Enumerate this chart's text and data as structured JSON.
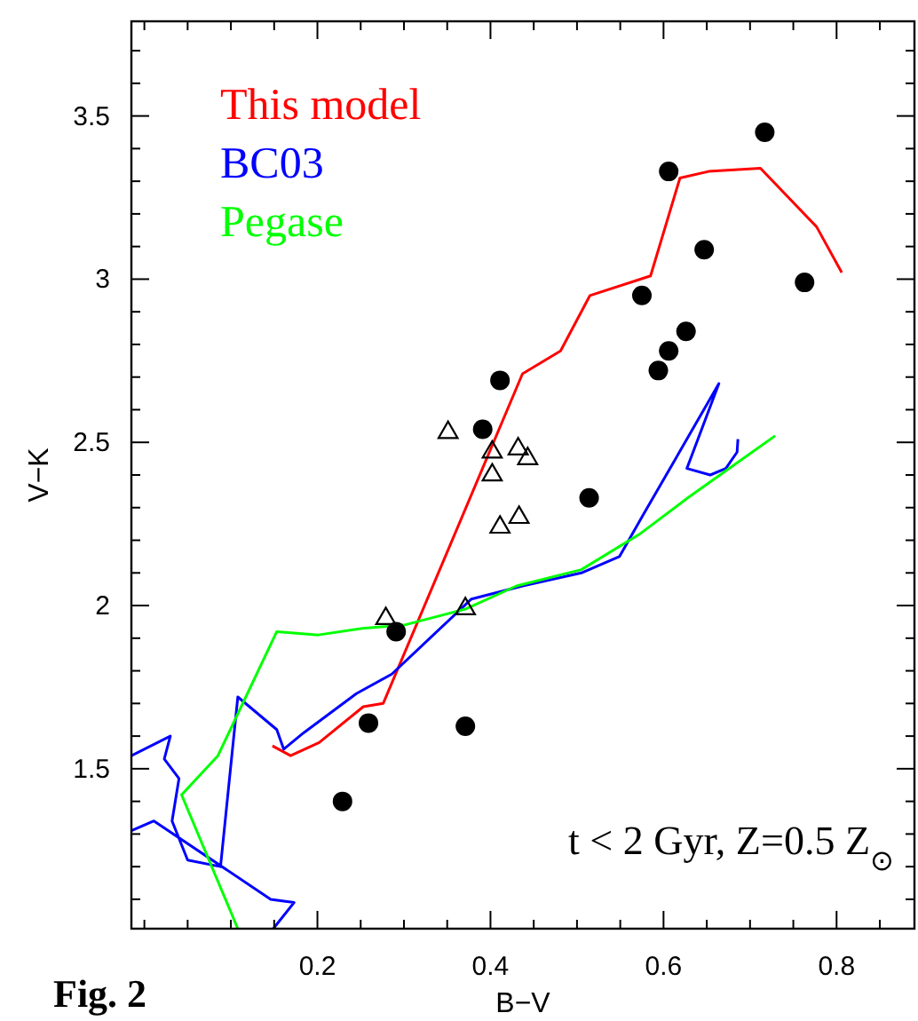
{
  "chart_data": {
    "type": "line",
    "xlabel": "B−V",
    "ylabel": "V−K",
    "legend": "top left",
    "xlim": [
      -0.015,
      0.89
    ],
    "ylim": [
      1.01,
      3.79
    ],
    "xticks": [
      {
        "value": 0,
        "label": null
      },
      {
        "value": 0.05,
        "label": null
      },
      {
        "value": 0.1,
        "label": null
      },
      {
        "value": 0.15,
        "label": null
      },
      0.2,
      {
        "value": 0.25,
        "label": null
      },
      {
        "value": 0.3,
        "label": null
      },
      {
        "value": 0.35,
        "label": null
      },
      0.4,
      {
        "value": 0.45,
        "label": null
      },
      {
        "value": 0.5,
        "label": null
      },
      {
        "value": 0.55,
        "label": null
      },
      0.6,
      {
        "value": 0.65,
        "label": null
      },
      {
        "value": 0.7,
        "label": null
      },
      {
        "value": 0.75,
        "label": null
      },
      0.8,
      {
        "value": 0.85,
        "label": null
      }
    ],
    "yticks": [
      {
        "value": 1.1,
        "label": null
      },
      {
        "value": 1.2,
        "label": null
      },
      {
        "value": 1.3,
        "label": null
      },
      {
        "value": 1.4,
        "label": null
      },
      1.5,
      {
        "value": 1.6,
        "label": null
      },
      {
        "value": 1.7,
        "label": null
      },
      {
        "value": 1.8,
        "label": null
      },
      {
        "value": 1.9,
        "label": null
      },
      2,
      {
        "value": 2.1,
        "label": null
      },
      {
        "value": 2.2,
        "label": null
      },
      {
        "value": 2.3,
        "label": null
      },
      {
        "value": 2.4,
        "label": null
      },
      2.5,
      {
        "value": 2.6,
        "label": null
      },
      {
        "value": 2.7,
        "label": null
      },
      {
        "value": 2.8,
        "label": null
      },
      {
        "value": 2.9,
        "label": null
      },
      3,
      {
        "value": 3.1,
        "label": null
      },
      {
        "value": 3.2,
        "label": null
      },
      {
        "value": 3.3,
        "label": null
      },
      {
        "value": 3.4,
        "label": null
      },
      3.5,
      {
        "value": 3.6,
        "label": null
      },
      {
        "value": 3.7,
        "label": null
      }
    ],
    "series": [
      {
        "name": "This model",
        "color": "#ff0000",
        "x": [
          0.148,
          0.169,
          0.202,
          0.253,
          0.276,
          0.437,
          0.481,
          0.515,
          0.585,
          0.619,
          0.652,
          0.712,
          0.777,
          0.806
        ],
        "values": [
          1.57,
          1.54,
          1.58,
          1.69,
          1.7,
          2.71,
          2.78,
          2.95,
          3.01,
          3.31,
          3.33,
          3.34,
          3.16,
          3.02
        ]
      },
      {
        "name": "BC03",
        "color": "#0000ff",
        "x": [
          0.149,
          0.173,
          0.146,
          0.011,
          -0.015,
          null,
          -0.015,
          0.03,
          0.023,
          0.04,
          0.032,
          0.05,
          0.088,
          0.108,
          0.153,
          0.161,
          0.184,
          0.245,
          0.286,
          0.334,
          0.378,
          0.437,
          0.505,
          0.549,
          0.577,
          0.664,
          0.627,
          0.654,
          0.672,
          0.685,
          0.686
        ],
        "values": [
          1.01,
          1.09,
          1.1,
          1.34,
          1.31,
          null,
          1.54,
          1.6,
          1.53,
          1.47,
          1.34,
          1.22,
          1.2,
          1.72,
          1.62,
          1.56,
          1.61,
          1.73,
          1.79,
          1.91,
          2.02,
          2.06,
          2.1,
          2.15,
          2.28,
          2.68,
          2.42,
          2.4,
          2.42,
          2.47,
          2.51
        ]
      },
      {
        "name": "Pegase",
        "color": "#00ff00",
        "x": [
          0.108,
          0.043,
          0.085,
          0.153,
          0.201,
          0.252,
          0.3,
          0.372,
          0.43,
          0.505,
          0.573,
          0.628,
          0.729
        ],
        "values": [
          1.01,
          1.42,
          1.54,
          1.92,
          1.91,
          1.93,
          1.94,
          1.99,
          2.06,
          2.11,
          2.22,
          2.33,
          2.52
        ]
      },
      {
        "type": "scatter",
        "marker": "circle",
        "color": "#000000",
        "x": [
          0.229,
          0.259,
          0.371,
          0.291,
          0.411,
          0.391,
          0.514,
          0.575,
          0.594,
          0.606,
          0.626,
          0.606,
          0.647,
          0.717,
          0.763
        ],
        "values": [
          1.4,
          1.64,
          1.63,
          1.92,
          2.69,
          2.54,
          2.33,
          2.95,
          2.72,
          2.78,
          2.84,
          3.33,
          3.09,
          3.45,
          2.99
        ]
      },
      {
        "type": "scatter",
        "marker": "triangle",
        "color": "#000000",
        "x": [
          0.351,
          0.402,
          0.432,
          0.443,
          0.402,
          0.411,
          0.433,
          0.279,
          0.371
        ],
        "values": [
          2.53,
          2.47,
          2.48,
          2.45,
          2.4,
          2.24,
          2.27,
          1.96,
          1.99
        ]
      }
    ],
    "annotations": [
      "t < 2 Gyr, Z=0.5 Z$_{⊙}$",
      "Fig. 2"
    ]
  }
}
